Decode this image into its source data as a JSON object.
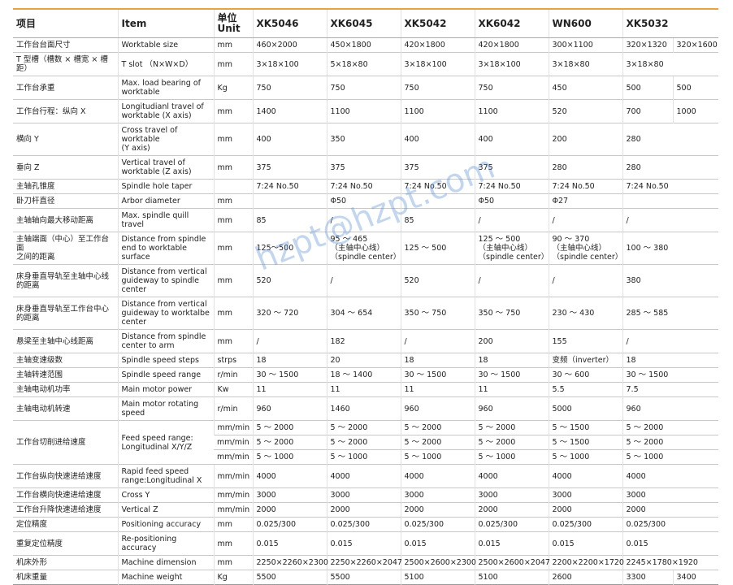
{
  "watermark": "hzpt@hzpt.com",
  "table": {
    "header": [
      "项目",
      "Item",
      "单位\nUnit",
      "XK5046",
      "XK6045",
      "XK5042",
      "XK6042",
      "WN600",
      "XK5032"
    ],
    "rows": [
      {
        "label": "工作台台面尺寸",
        "item": "Worktable size",
        "lines": [
          [
            "mm",
            "460×2000",
            "450×1800",
            "420×1800",
            "420×1800",
            "300×1100",
            [
              "320×1320",
              "320×1600"
            ]
          ]
        ]
      },
      {
        "label": "T 型槽（槽数 × 槽宽 × 槽距）",
        "item": "T slot （N×W×D）",
        "lines": [
          [
            "mm",
            "3×18×100",
            "5×18×80",
            "3×18×100",
            "3×18×100",
            "3×18×80",
            "3×18×80"
          ]
        ]
      },
      {
        "label": "工作台承重",
        "item": "Max. load bearing of\nworktable",
        "lines": [
          [
            "Kg",
            "750",
            "750",
            "750",
            "750",
            "450",
            [
              "500",
              "500"
            ]
          ]
        ]
      },
      {
        "label": "工作台行程：纵向 X",
        "item": "Longitudianl travel of\nworktable (X axis)",
        "lines": [
          [
            "mm",
            "1400",
            "1100",
            "1100",
            "1100",
            "520",
            [
              "700",
              "1000"
            ]
          ]
        ]
      },
      {
        "label": "横向 Y",
        "item": "Cross travel of worktable\n(Y axis)",
        "lines": [
          [
            "mm",
            "400",
            "350",
            "400",
            "400",
            "200",
            "280"
          ]
        ]
      },
      {
        "label": "垂向 Z",
        "item": "Vertical travel of\nworktable (Z axis)",
        "lines": [
          [
            "mm",
            "375",
            "375",
            "375",
            "375",
            "280",
            "280"
          ]
        ]
      },
      {
        "label": "主轴孔锥度",
        "item": "Spindle hole taper",
        "lines": [
          [
            null,
            "7:24 No.50",
            "7:24 No.50",
            "7:24 No.50",
            "7:24 No.50",
            "7:24 No.50",
            "7:24 No.50"
          ]
        ]
      },
      {
        "label": "卧刀杆直径",
        "item": "Arbor diameter",
        "lines": [
          [
            "mm",
            null,
            "Φ50",
            null,
            "Φ50",
            "Φ27",
            null
          ]
        ]
      },
      {
        "label": "主轴轴向最大移动距离",
        "item": "Max. spindle quill travel",
        "lines": [
          [
            "mm",
            "85",
            "/",
            "85",
            "/",
            "/",
            "/"
          ]
        ]
      },
      {
        "label": "主轴端面（中心）至工作台面\n之间的距离",
        "item": "Distance from spindle\nend to worktable surface",
        "lines": [
          [
            "mm",
            "125～500",
            "95 ～ 465\n（主轴中心线）\n（spindle center）",
            "125 ～ 500",
            "125 ～ 500\n（主轴中心线）\n（spindle center）",
            "90 ～ 370\n（主轴中心线）\n（spindle center）",
            "100 ～ 380"
          ]
        ]
      },
      {
        "label": "床身垂直导轨至主轴中心线\n的距离",
        "item": "Distance from vertical\nguideway to spindle\ncenter",
        "lines": [
          [
            "mm",
            "520",
            "/",
            "520",
            "/",
            "/",
            "380"
          ]
        ]
      },
      {
        "label": "床身垂直导轨至工作台中心\n的距离",
        "item": "Distance from vertical\nguideway to worktalbe\ncenter",
        "lines": [
          [
            "mm",
            "320 ～ 720",
            "304 ～ 654",
            "350 ～ 750",
            "350 ～ 750",
            "230 ～ 430",
            "285 ～ 585"
          ]
        ]
      },
      {
        "label": "悬梁至主轴中心线距离",
        "item": "Distance from spindle\ncenter to arm",
        "lines": [
          [
            "mm",
            "/",
            "182",
            "/",
            "200",
            "155",
            "/"
          ]
        ]
      },
      {
        "label": "主轴变速级数",
        "item": "Spindle speed steps",
        "lines": [
          [
            "strps",
            "18",
            "20",
            "18",
            "18",
            "变频（inverter）",
            "18"
          ]
        ]
      },
      {
        "label": "主轴转速范围",
        "item": "Spindle speed range",
        "lines": [
          [
            "r/min",
            "30 ～ 1500",
            "18 ～ 1400",
            "30 ～ 1500",
            "30 ～ 1500",
            "30 ～ 600",
            "30 ～ 1500"
          ]
        ]
      },
      {
        "label": "主轴电动机功率",
        "item": "Main motor power",
        "lines": [
          [
            "Kw",
            "11",
            "11",
            "11",
            "11",
            "5.5",
            "7.5"
          ]
        ]
      },
      {
        "label": "主轴电动机转速",
        "item": "Main motor rotating\nspeed",
        "lines": [
          [
            "r/min",
            "960",
            "1460",
            "960",
            "960",
            "5000",
            "960"
          ]
        ]
      },
      {
        "label": "工作台切削进给速度",
        "item": "Feed speed range:\nLongitudinal X/Y/Z",
        "lines": [
          [
            "mm/min",
            "5 ～ 2000",
            "5 ～ 2000",
            "5 ～ 2000",
            "5 ～ 2000",
            "5 ～ 1500",
            "5 ～ 2000"
          ],
          [
            "mm/min",
            "5 ～ 2000",
            "5 ～ 2000",
            "5 ～ 2000",
            "5 ～ 2000",
            "5 ～ 1500",
            "5 ～ 2000"
          ],
          [
            "mm/min",
            "5 ～ 1000",
            "5 ～ 1000",
            "5 ～ 1000",
            "5 ～ 1000",
            "5 ～ 1000",
            "5 ～ 1000"
          ]
        ]
      },
      {
        "label": "工作台纵向快速进给速度",
        "item": "Rapid feed speed\nrange:Longitudinal X",
        "lines": [
          [
            "mm/min",
            "4000",
            "4000",
            "4000",
            "4000",
            "4000",
            "4000"
          ]
        ]
      },
      {
        "label": "工作台横向快速进给速度",
        "item": "Cross Y",
        "lines": [
          [
            "mm/min",
            "3000",
            "3000",
            "3000",
            "3000",
            "3000",
            "3000"
          ]
        ]
      },
      {
        "label": "工作台升降快速进给速度",
        "item": "Vertical Z",
        "lines": [
          [
            "mm/min",
            "2000",
            "2000",
            "2000",
            "2000",
            "2000",
            "2000"
          ]
        ]
      },
      {
        "label": "定位精度",
        "item": "Positioning accuracy",
        "lines": [
          [
            "mm",
            "0.025/300",
            "0.025/300",
            "0.025/300",
            "0.025/300",
            "0.025/300",
            "0.025/300"
          ]
        ]
      },
      {
        "label": "重复定位精度",
        "item": "Re-positioning accuracy",
        "lines": [
          [
            "mm",
            "0.015",
            "0.015",
            "0.015",
            "0.015",
            "0.015",
            "0.015"
          ]
        ]
      },
      {
        "label": "机床外形",
        "item": "Machine dimension",
        "lines": [
          [
            "mm",
            "2250×2260×2300",
            "2250×2260×2047",
            "2500×2600×2300",
            "2500×2600×2047",
            "2200×2200×1720",
            "2245×1780×1920"
          ]
        ]
      },
      {
        "label": "机床重量",
        "item": "Machine weight",
        "lines": [
          [
            "Kg",
            "5500",
            "5500",
            "5100",
            "5100",
            "2600",
            [
              "3300",
              "3400"
            ]
          ]
        ]
      }
    ]
  }
}
